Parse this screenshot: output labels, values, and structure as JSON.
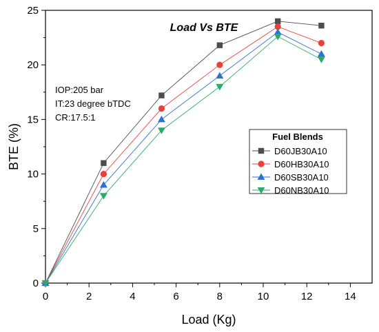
{
  "chart_data": {
    "type": "line",
    "title": "Load Vs BTE",
    "xlabel": "Load (Kg)",
    "ylabel": "BTE (%)",
    "xlim": [
      0,
      15
    ],
    "ylim": [
      0,
      25
    ],
    "xticks": [
      0,
      2,
      4,
      6,
      8,
      10,
      12,
      14
    ],
    "yticks": [
      0,
      5,
      10,
      15,
      20,
      25
    ],
    "grid": false,
    "annotations": [
      "IOP:205 bar",
      "IT:23 degree bTDC",
      "CR:17.5:1"
    ],
    "legend": {
      "title": "Fuel Blends",
      "placement": "center-right"
    },
    "x": [
      0,
      2.67,
      5.33,
      8,
      10.67,
      12.67
    ],
    "series": [
      {
        "name": "D60JB30A10",
        "values": [
          0,
          11,
          17.2,
          21.8,
          24,
          23.6
        ],
        "color": "#4d4d4d",
        "marker": "square"
      },
      {
        "name": "D60HB30A10",
        "values": [
          0,
          10,
          16,
          20,
          23.5,
          22
        ],
        "color": "#e8413c",
        "marker": "circle"
      },
      {
        "name": "D60SB30A10",
        "values": [
          0,
          9,
          15,
          19,
          23,
          21
        ],
        "color": "#2e6fd6",
        "marker": "triangle-up"
      },
      {
        "name": "D60NB30A10",
        "values": [
          0,
          8,
          14,
          18,
          22.6,
          20.5
        ],
        "color": "#2aab6b",
        "marker": "triangle-down"
      }
    ]
  }
}
